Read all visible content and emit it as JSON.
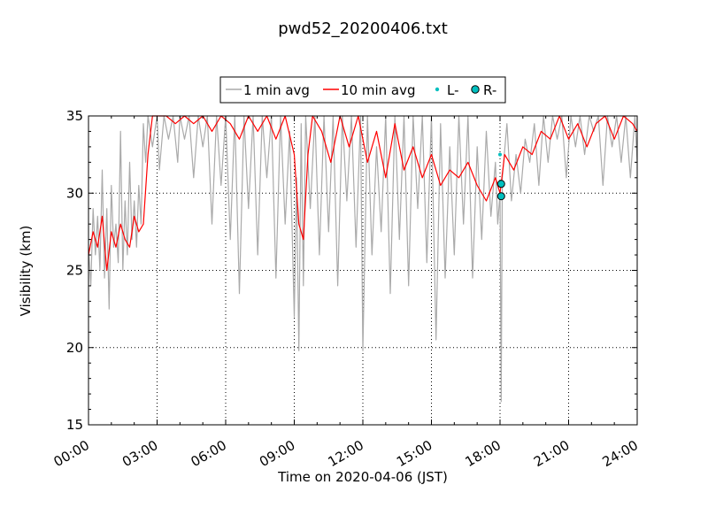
{
  "chart_data": {
    "type": "line",
    "title": "pwd52_20200406.txt",
    "xlabel": "Time on 2020-04-06 (JST)",
    "ylabel": "Visibility (km)",
    "xlim_hours": [
      0,
      24
    ],
    "ylim": [
      15,
      35
    ],
    "x_ticks": [
      {
        "value": 0,
        "label": "00:00"
      },
      {
        "value": 3,
        "label": "03:00"
      },
      {
        "value": 6,
        "label": "06:00"
      },
      {
        "value": 9,
        "label": "09:00"
      },
      {
        "value": 12,
        "label": "12:00"
      },
      {
        "value": 15,
        "label": "15:00"
      },
      {
        "value": 18,
        "label": "18:00"
      },
      {
        "value": 21,
        "label": "21:00"
      },
      {
        "value": 24,
        "label": "24:00"
      }
    ],
    "y_ticks": [
      {
        "value": 15,
        "label": "15"
      },
      {
        "value": 20,
        "label": "20"
      },
      {
        "value": 25,
        "label": "25"
      },
      {
        "value": 30,
        "label": "30"
      },
      {
        "value": 35,
        "label": "35"
      }
    ],
    "grid": true,
    "legend_position": "top-center",
    "legend": [
      {
        "label": "1 min avg",
        "kind": "line",
        "color": "#aaaaaa"
      },
      {
        "label": "10 min avg",
        "kind": "line",
        "color": "#ff0000"
      },
      {
        "label": "L-",
        "kind": "small-dot",
        "color": "#00bfbf"
      },
      {
        "label": "R-",
        "kind": "large-dot",
        "color": "#00bfbf"
      }
    ],
    "series": [
      {
        "name": "1 min avg",
        "color": "#aaaaaa",
        "x_hours": [
          0,
          0.1,
          0.2,
          0.3,
          0.4,
          0.5,
          0.6,
          0.7,
          0.8,
          0.9,
          1.0,
          1.1,
          1.2,
          1.3,
          1.4,
          1.5,
          1.6,
          1.7,
          1.8,
          1.9,
          2.0,
          2.1,
          2.2,
          2.3,
          2.4,
          2.5,
          2.6,
          2.8,
          3.0,
          3.1,
          3.3,
          3.5,
          3.7,
          3.9,
          4.0,
          4.2,
          4.4,
          4.6,
          4.8,
          5.0,
          5.2,
          5.4,
          5.6,
          5.8,
          6.0,
          6.2,
          6.4,
          6.6,
          6.8,
          7.0,
          7.2,
          7.4,
          7.6,
          7.8,
          8.0,
          8.2,
          8.4,
          8.6,
          8.8,
          9.0,
          9.1,
          9.2,
          9.3,
          9.4,
          9.5,
          9.7,
          9.9,
          10.1,
          10.3,
          10.5,
          10.7,
          10.9,
          11.1,
          11.3,
          11.5,
          11.7,
          11.9,
          12.0,
          12.2,
          12.4,
          12.6,
          12.8,
          13.0,
          13.2,
          13.4,
          13.6,
          13.8,
          14.0,
          14.2,
          14.4,
          14.6,
          14.8,
          15.0,
          15.2,
          15.4,
          15.6,
          15.8,
          16.0,
          16.2,
          16.4,
          16.6,
          16.8,
          17.0,
          17.2,
          17.4,
          17.6,
          17.8,
          17.9,
          18.0,
          18.05,
          18.1,
          18.3,
          18.5,
          18.7,
          18.9,
          19.1,
          19.3,
          19.5,
          19.7,
          19.9,
          20.1,
          20.3,
          20.5,
          20.7,
          20.9,
          21.1,
          21.3,
          21.5,
          21.7,
          21.9,
          22.1,
          22.3,
          22.5,
          22.7,
          22.9,
          23.1,
          23.3,
          23.5,
          23.7,
          23.9,
          24.0
        ],
        "values": [
          26.5,
          24.0,
          29.0,
          26.0,
          28.5,
          25.0,
          31.5,
          24.5,
          29.0,
          22.5,
          30.5,
          26.5,
          28.0,
          25.5,
          34.0,
          25.0,
          29.5,
          26.0,
          32.0,
          27.0,
          29.5,
          26.5,
          30.5,
          28.0,
          34.5,
          32.0,
          35.0,
          33.0,
          35.0,
          31.5,
          35.0,
          33.5,
          35.0,
          32.0,
          35.0,
          33.5,
          35.0,
          31.0,
          35.0,
          33.0,
          35.0,
          28.0,
          35.0,
          30.5,
          35.0,
          27.0,
          35.0,
          23.5,
          35.0,
          29.0,
          35.0,
          26.0,
          35.0,
          31.0,
          35.0,
          24.5,
          35.0,
          28.0,
          34.0,
          22.0,
          31.0,
          19.8,
          34.5,
          24.0,
          35.0,
          29.0,
          35.0,
          26.0,
          35.0,
          27.5,
          35.0,
          24.0,
          35.0,
          29.5,
          35.0,
          26.5,
          35.0,
          19.8,
          35.0,
          26.0,
          33.0,
          27.5,
          35.0,
          23.5,
          35.0,
          27.0,
          35.0,
          24.0,
          35.0,
          29.0,
          35.0,
          25.5,
          35.0,
          20.5,
          34.5,
          24.5,
          33.0,
          26.0,
          35.0,
          28.0,
          35.0,
          24.5,
          33.0,
          27.0,
          34.0,
          28.5,
          32.0,
          28.0,
          30.0,
          16.5,
          31.0,
          34.5,
          29.5,
          32.5,
          30.0,
          33.5,
          32.0,
          34.5,
          30.5,
          35.0,
          32.0,
          35.0,
          33.5,
          35.0,
          31.0,
          35.0,
          33.0,
          35.0,
          32.5,
          35.0,
          34.0,
          35.0,
          30.5,
          35.0,
          33.0,
          35.0,
          32.0,
          35.0,
          31.0,
          35.0,
          32.0
        ]
      },
      {
        "name": "10 min avg",
        "color": "#ff0000",
        "x_hours": [
          0,
          0.2,
          0.4,
          0.6,
          0.8,
          1.0,
          1.2,
          1.4,
          1.6,
          1.8,
          2.0,
          2.2,
          2.4,
          2.6,
          2.8,
          3.0,
          3.4,
          3.8,
          4.2,
          4.6,
          5.0,
          5.4,
          5.8,
          6.2,
          6.6,
          7.0,
          7.4,
          7.8,
          8.2,
          8.6,
          9.0,
          9.2,
          9.4,
          9.6,
          9.8,
          10.2,
          10.6,
          11.0,
          11.4,
          11.8,
          12.2,
          12.6,
          13.0,
          13.4,
          13.8,
          14.2,
          14.6,
          15.0,
          15.4,
          15.8,
          16.2,
          16.6,
          17.0,
          17.4,
          17.8,
          18.0,
          18.2,
          18.6,
          19.0,
          19.4,
          19.8,
          20.2,
          20.6,
          21.0,
          21.4,
          21.8,
          22.2,
          22.6,
          23.0,
          23.4,
          23.8,
          24.0
        ],
        "values": [
          26.0,
          27.5,
          26.5,
          28.5,
          25.0,
          27.5,
          26.5,
          28.0,
          27.0,
          26.5,
          28.5,
          27.5,
          28.0,
          32.5,
          35.0,
          35.0,
          35.0,
          34.5,
          35.0,
          34.5,
          35.0,
          34.0,
          35.0,
          34.5,
          33.5,
          35.0,
          34.0,
          35.0,
          33.5,
          35.0,
          32.5,
          28.0,
          27.0,
          32.5,
          35.0,
          34.0,
          32.0,
          35.0,
          33.0,
          35.0,
          32.0,
          34.0,
          31.0,
          34.5,
          31.5,
          33.0,
          31.0,
          32.5,
          30.5,
          31.5,
          31.0,
          32.0,
          30.5,
          29.5,
          31.0,
          30.0,
          32.5,
          31.5,
          33.0,
          32.5,
          34.0,
          33.5,
          35.0,
          33.5,
          34.5,
          33.0,
          34.5,
          35.0,
          33.5,
          35.0,
          34.5,
          34.0
        ]
      },
      {
        "name": "L-",
        "color": "#00bfbf",
        "points": [
          {
            "x_hours": 18.0,
            "value": 32.5
          }
        ]
      },
      {
        "name": "R-",
        "color": "#00bfbf",
        "points": [
          {
            "x_hours": 18.05,
            "value": 30.6
          },
          {
            "x_hours": 18.05,
            "value": 29.8
          }
        ]
      }
    ]
  }
}
